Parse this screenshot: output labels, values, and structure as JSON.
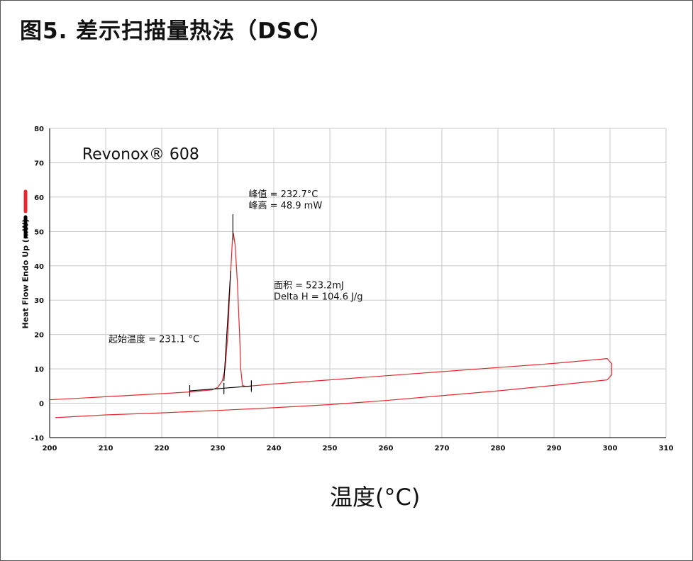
{
  "figure_title": "图5. 差示扫描量热法（DSC）",
  "chart_data": {
    "type": "line",
    "title": "Revonox® 608",
    "xlabel": "温度(°C)",
    "ylabel": "Heat Flow Endo Up (mW)",
    "xlim": [
      200,
      310
    ],
    "ylim": [
      -10,
      80
    ],
    "grid": true,
    "x_ticks": [
      "200",
      "210",
      "220",
      "230",
      "240",
      "250",
      "260",
      "270",
      "280",
      "290",
      "300",
      "310"
    ],
    "y_ticks": [
      "80",
      "70",
      "60",
      "50",
      "40",
      "30",
      "20",
      "10",
      "0",
      "-10"
    ],
    "series": [
      {
        "color": "#e8262d",
        "points": [
          [
            200,
            1.0
          ],
          [
            210,
            1.9
          ],
          [
            220,
            2.8
          ],
          [
            225,
            3.3
          ],
          [
            229,
            3.9
          ],
          [
            230,
            4.6
          ],
          [
            230.8,
            6.5
          ],
          [
            231.3,
            10
          ],
          [
            231.8,
            20
          ],
          [
            232.2,
            35
          ],
          [
            232.6,
            47
          ],
          [
            232.8,
            49.5
          ],
          [
            233.1,
            46
          ],
          [
            233.5,
            35
          ],
          [
            233.9,
            20
          ],
          [
            234.1,
            10
          ],
          [
            234.4,
            5.2
          ],
          [
            235,
            4.9
          ],
          [
            240,
            5.6
          ],
          [
            250,
            6.8
          ],
          [
            260,
            8.0
          ],
          [
            270,
            9.2
          ],
          [
            280,
            10.4
          ],
          [
            290,
            11.6
          ],
          [
            299.5,
            13.0
          ],
          [
            300.3,
            11.5
          ],
          [
            300.3,
            8.3
          ],
          [
            299.5,
            6.8
          ],
          [
            290,
            5.2
          ],
          [
            280,
            3.6
          ],
          [
            270,
            2.2
          ],
          [
            260,
            0.8
          ],
          [
            250,
            -0.4
          ],
          [
            240,
            -1.3
          ],
          [
            230,
            -2.1
          ],
          [
            220,
            -2.8
          ],
          [
            210,
            -3.4
          ],
          [
            201,
            -4.2
          ]
        ]
      },
      {
        "color": "#000000",
        "points": [
          [
            225,
            3.6
          ],
          [
            236,
            5.0
          ]
        ]
      },
      {
        "color": "#000000",
        "points": [
          [
            231.1,
            6.5
          ],
          [
            232.3,
            38.5
          ]
        ]
      },
      {
        "color": "#000000",
        "points": [
          [
            232.7,
            47.5
          ],
          [
            232.7,
            55
          ]
        ]
      }
    ],
    "markers": [
      {
        "x": 225,
        "y": 3.6
      },
      {
        "x": 231.1,
        "y": 4.3
      },
      {
        "x": 236,
        "y": 5.0
      }
    ],
    "annotations": [
      {
        "lines": [
          "峰值 = 232.7°C",
          "峰高 = 48.9 mW"
        ],
        "x": 235.5,
        "y": 60
      },
      {
        "lines": [
          "面积 = 523.2mJ",
          "Delta H = 104.6 J/g"
        ],
        "x": 240,
        "y": 33.5
      },
      {
        "lines": [
          "起始温度 = 231.1 °C"
        ],
        "x": 210.5,
        "y": 17.8
      }
    ],
    "legend_colors": [
      "#e8262d",
      "#000000"
    ]
  }
}
